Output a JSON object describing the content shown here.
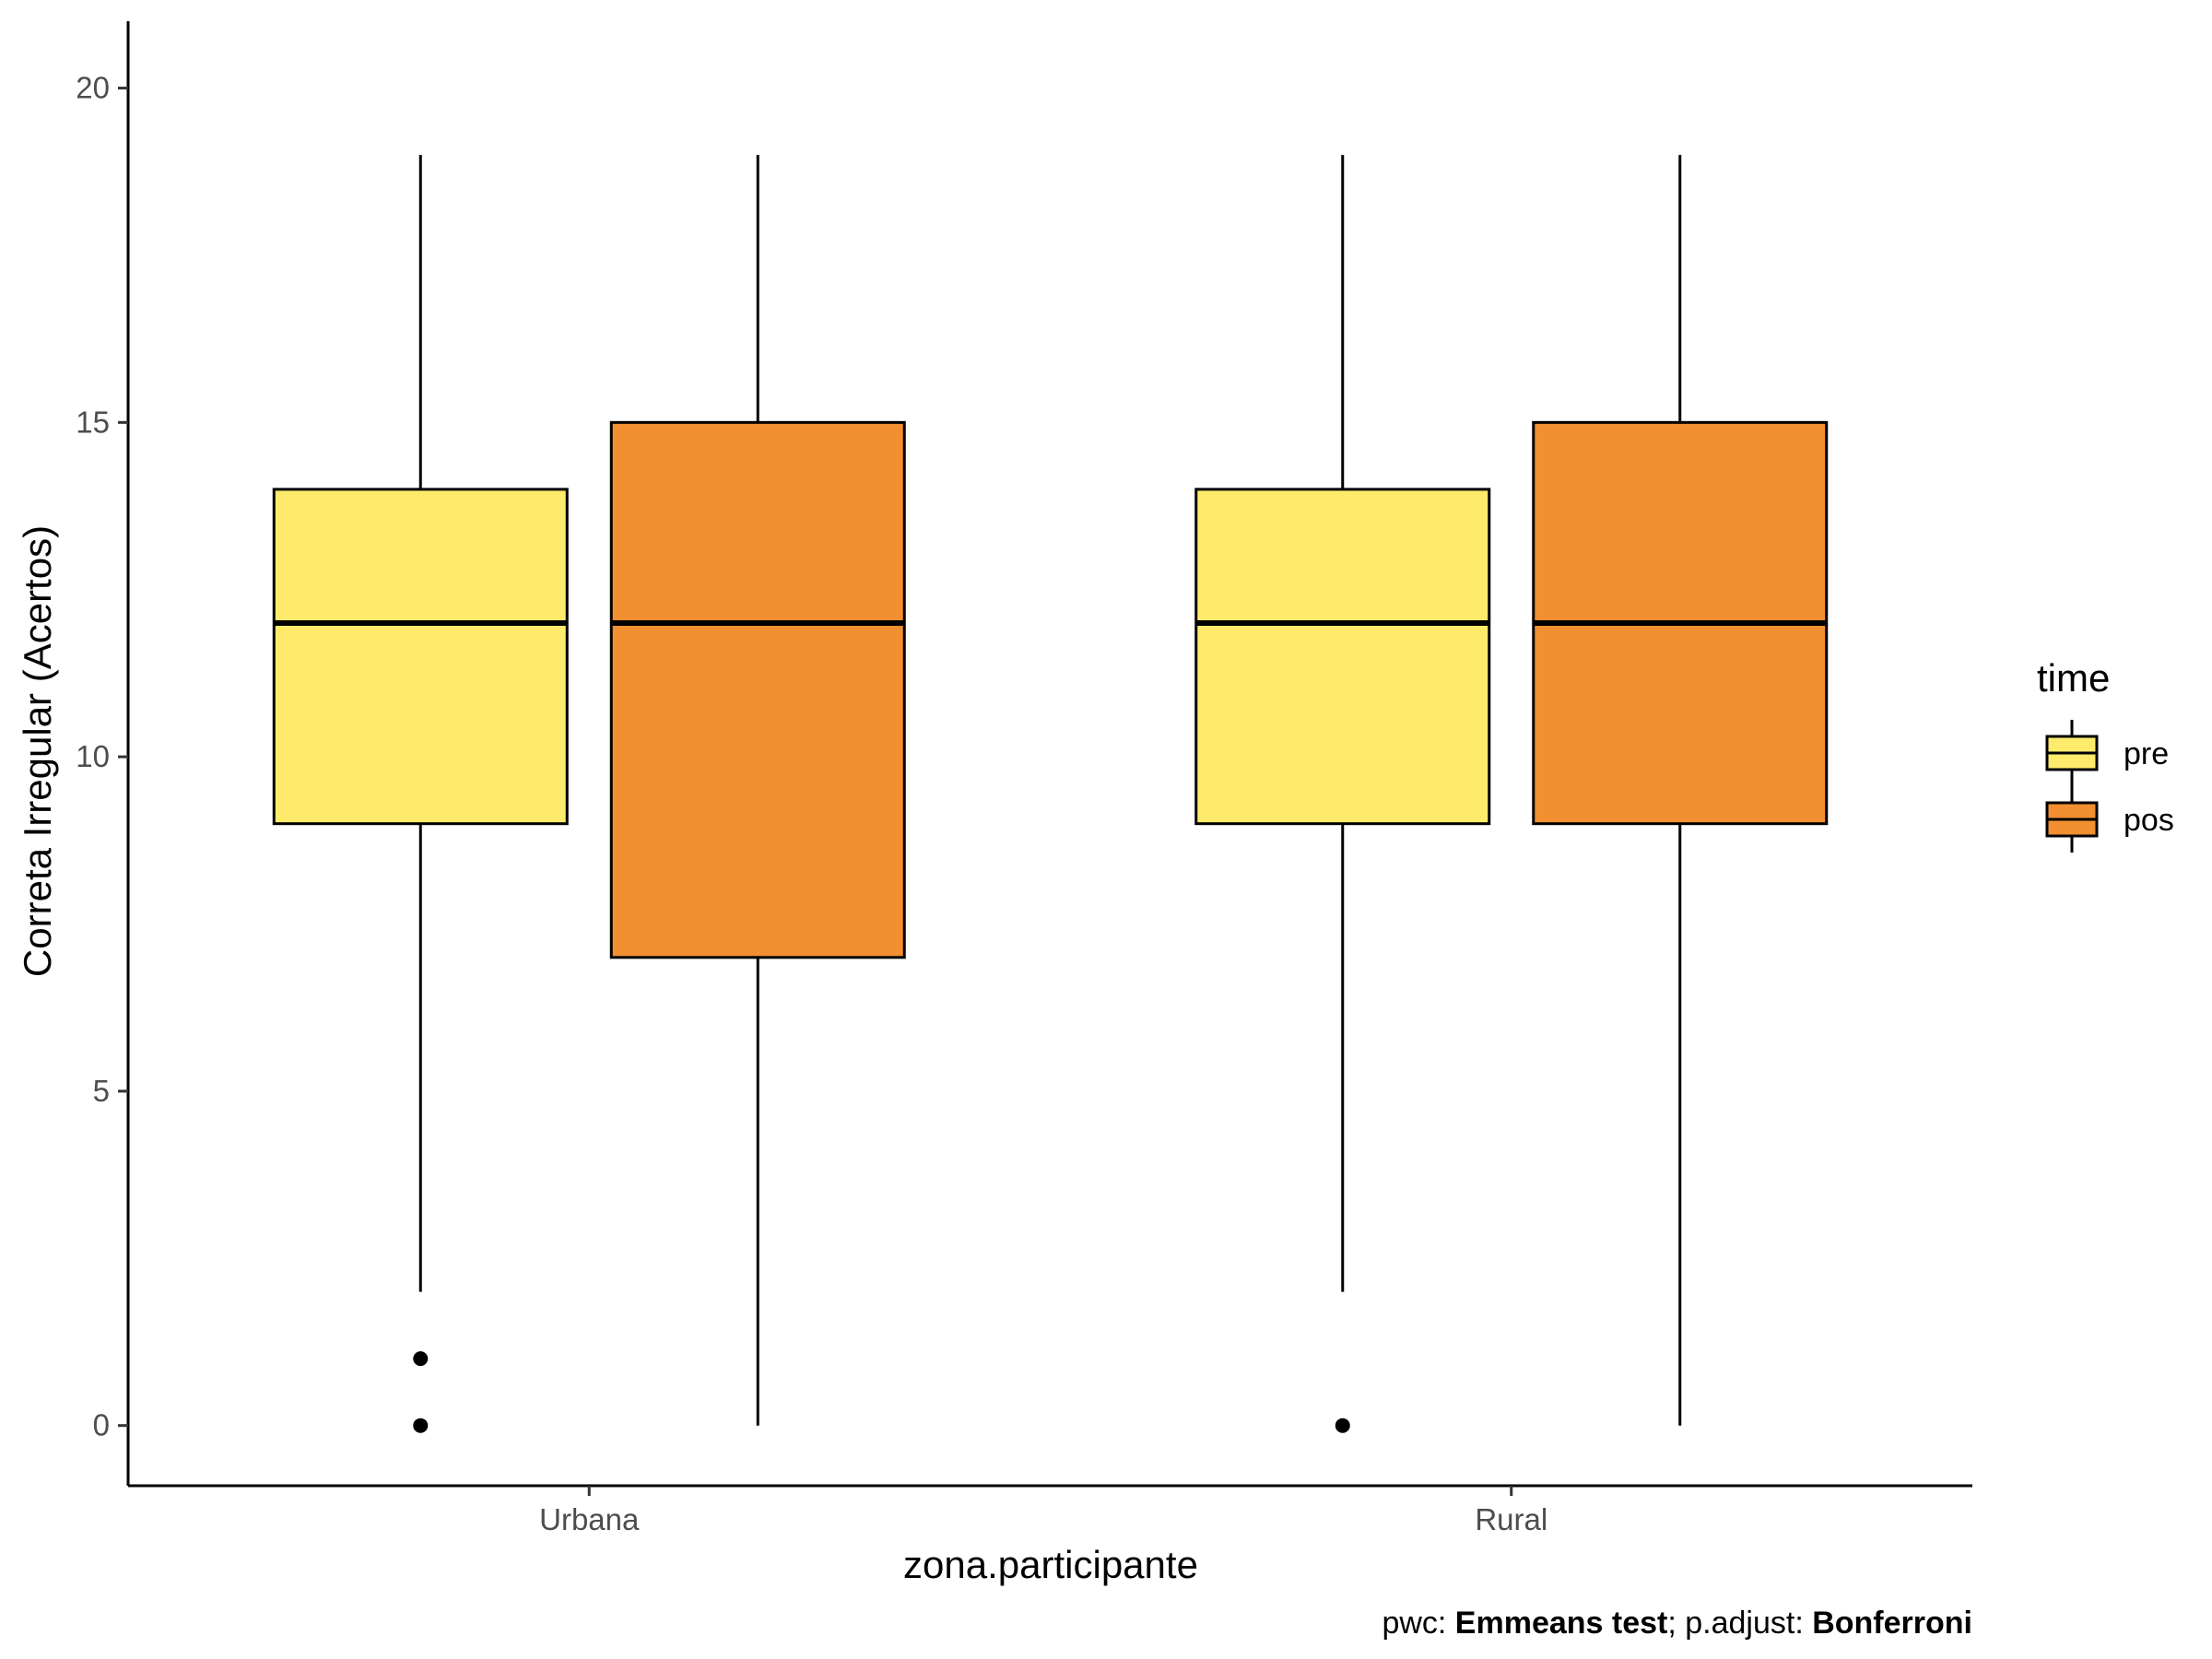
{
  "chart_data": {
    "type": "boxplot",
    "xlabel": "zona.participante",
    "ylabel": "Correta Irregular (Acertos)",
    "ylim": [
      -0.9,
      21
    ],
    "yticks": [
      0,
      5,
      10,
      15,
      20
    ],
    "categories": [
      "Urbana",
      "Rural"
    ],
    "legend": {
      "title": "time",
      "position": "right",
      "entries": [
        {
          "label": "pre",
          "color": "#FFEB6B"
        },
        {
          "label": "pos",
          "color": "#F28F30"
        }
      ]
    },
    "grid": false,
    "series": [
      {
        "name": "pre",
        "color": "#FFEB6B",
        "boxes": [
          {
            "category": "Urbana",
            "lower_whisker": 2,
            "q1": 9,
            "median": 12,
            "q3": 14,
            "upper_whisker": 19,
            "outliers": [
              0,
              1
            ]
          },
          {
            "category": "Rural",
            "lower_whisker": 2,
            "q1": 9,
            "median": 12,
            "q3": 14,
            "upper_whisker": 19,
            "outliers": [
              0
            ]
          }
        ]
      },
      {
        "name": "pos",
        "color": "#F28F30",
        "boxes": [
          {
            "category": "Urbana",
            "lower_whisker": 0,
            "q1": 7,
            "median": 12,
            "q3": 15,
            "upper_whisker": 19,
            "outliers": []
          },
          {
            "category": "Rural",
            "lower_whisker": 0,
            "q1": 9,
            "median": 12,
            "q3": 15,
            "upper_whisker": 19,
            "outliers": []
          }
        ]
      }
    ],
    "caption": {
      "parts": [
        {
          "text": "pwc: ",
          "bold": false
        },
        {
          "text": "Emmeans test",
          "bold": true
        },
        {
          "text": "; p.adjust: ",
          "bold": false
        },
        {
          "text": "Bonferroni",
          "bold": true
        }
      ]
    }
  }
}
